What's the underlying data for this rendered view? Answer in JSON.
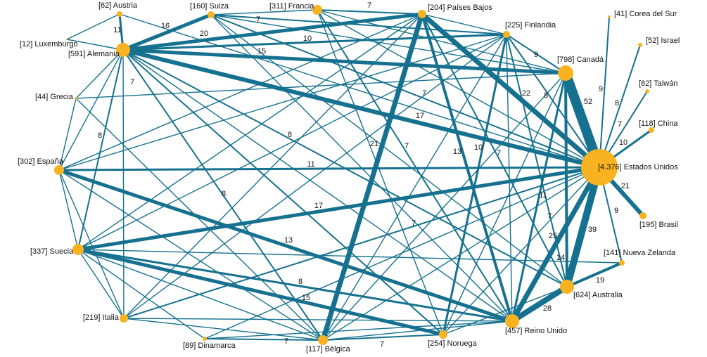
{
  "nodes": [
    {
      "label": "[62] Austria"
    },
    {
      "label": "[160] Suiza"
    },
    {
      "label": "[311] Francia"
    },
    {
      "label": "[204] Países Bajos"
    },
    {
      "label": "[225] Finlandia"
    },
    {
      "label": "[41] Corea del Sur"
    },
    {
      "label": "[52] Israel"
    },
    {
      "label": "[82] Taiwán"
    },
    {
      "label": "[118] China"
    },
    {
      "label": "[798] Canadá"
    },
    {
      "label": "[12] Luxemburgo"
    },
    {
      "label": "[591] Alemania"
    },
    {
      "label": "[44] Grecia"
    },
    {
      "label": "[302] España"
    },
    {
      "label": "[4.376] Estados Unidos"
    },
    {
      "label": "[195] Brasil"
    },
    {
      "label": "[337] Suecia"
    },
    {
      "label": "[141] Nueva Zelanda"
    },
    {
      "label": "[624] Australia"
    },
    {
      "label": "[219] Italia"
    },
    {
      "label": "[89] Dinamarca"
    },
    {
      "label": "[117] Bélgica"
    },
    {
      "label": "[254] Noruega"
    },
    {
      "label": "[457] Reino Unido"
    }
  ],
  "edges": [
    {
      "weight": 11
    },
    {
      "weight": 16
    },
    {
      "weight": 20
    },
    {
      "weight": 7
    },
    {
      "weight": 7
    },
    {
      "weight": 10
    },
    {
      "weight": 15
    },
    {
      "weight": 17
    },
    {
      "weight": 7
    },
    {
      "weight": 9
    },
    {
      "weight": 22
    },
    {
      "weight": 8
    },
    {
      "weight": 52
    },
    {
      "weight": 9
    },
    {
      "weight": 8
    },
    {
      "weight": 7
    },
    {
      "weight": 10
    },
    {
      "weight": 7
    },
    {
      "weight": 8
    },
    {
      "weight": 8
    },
    {
      "weight": 21
    },
    {
      "weight": 7
    },
    {
      "weight": 13
    },
    {
      "weight": 10
    },
    {
      "weight": 7
    },
    {
      "weight": 11
    },
    {
      "weight": 17
    },
    {
      "weight": 8
    },
    {
      "weight": 7
    },
    {
      "weight": 11
    },
    {
      "weight": 7
    },
    {
      "weight": 25
    },
    {
      "weight": 39
    },
    {
      "weight": 9
    },
    {
      "weight": 21
    },
    {
      "weight": 14
    },
    {
      "weight": 13
    },
    {
      "weight": 8
    },
    {
      "weight": 15
    },
    {
      "weight": 19
    },
    {
      "weight": 28
    },
    {
      "weight": 7
    },
    {
      "weight": 7
    }
  ]
}
